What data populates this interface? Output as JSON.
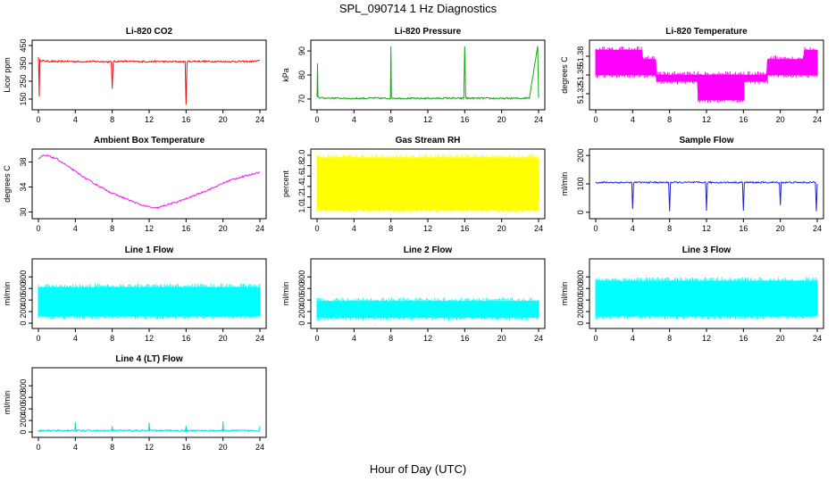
{
  "figure": {
    "title": "SPL_090714  1 Hz Diagnostics",
    "x_axis_label": "Hour of Day (UTC)"
  },
  "chart_data": [
    {
      "type": "line",
      "title": "Li-820 CO2",
      "ylabel": "Licor ppm",
      "color": "#ee1111",
      "xlim": [
        0,
        24
      ],
      "ylim": [
        110,
        460
      ],
      "xticks": [
        0,
        4,
        8,
        12,
        16,
        20,
        24
      ],
      "yticks": [
        150,
        250,
        350,
        450
      ],
      "ytick_labels": [
        "150",
        "250",
        "350",
        "450"
      ],
      "series": [
        {
          "x": [
            0,
            0.1,
            0.15,
            0.2,
            1,
            2,
            3,
            4,
            5,
            6,
            7,
            7.9,
            8,
            8.1,
            9,
            10,
            11,
            12,
            13,
            14,
            15,
            15.9,
            16,
            16.1,
            17,
            18,
            19,
            20,
            21,
            22,
            23,
            24
          ],
          "y": [
            390,
            160,
            370,
            365,
            362,
            360,
            362,
            360,
            360,
            361,
            360,
            358,
            210,
            360,
            362,
            361,
            360,
            360,
            361,
            359,
            360,
            358,
            120,
            360,
            362,
            361,
            361,
            360,
            360,
            361,
            360,
            365
          ]
        }
      ]
    },
    {
      "type": "line",
      "title": "Li-820 Pressure",
      "ylabel": "kPa",
      "color": "#11aa11",
      "xlim": [
        0,
        24
      ],
      "ylim": [
        67,
        93
      ],
      "xticks": [
        0,
        4,
        8,
        12,
        16,
        20,
        24
      ],
      "yticks": [
        70,
        80,
        90
      ],
      "ytick_labels": [
        "70",
        "80",
        "90"
      ],
      "series": [
        {
          "x": [
            0,
            0.05,
            0.1,
            0.3,
            1,
            2,
            3,
            4,
            5,
            6,
            7,
            7.95,
            8,
            8.05,
            9,
            10,
            11,
            12,
            13,
            14,
            15,
            15.9,
            16,
            16.1,
            17,
            18,
            19,
            20,
            21,
            22,
            23,
            23.9,
            24
          ],
          "y": [
            70.5,
            85,
            71,
            70.5,
            70.4,
            70.4,
            70.3,
            70.2,
            70.3,
            70.4,
            70.3,
            70.3,
            92,
            70.4,
            70.3,
            70.3,
            70.2,
            70.3,
            70.3,
            70.4,
            70.3,
            70.3,
            92,
            70.4,
            70.3,
            70.3,
            70.3,
            70.2,
            70.3,
            70.3,
            70.5,
            92,
            70.5
          ]
        }
      ]
    },
    {
      "type": "area",
      "title": "Li-820 Temperature",
      "ylabel": "degrees C",
      "color": "#ff00ff",
      "xlim": [
        0,
        24
      ],
      "ylim": [
        51.3,
        51.4
      ],
      "xticks": [
        0,
        4,
        8,
        12,
        16,
        20,
        24
      ],
      "yticks": [
        51.32,
        51.35,
        51.38
      ],
      "ytick_labels": [
        "51.32",
        "51.35",
        "51.38"
      ],
      "series": [
        {
          "x": [
            0,
            5,
            5.1,
            6.5,
            6.6,
            11,
            11.1,
            16,
            16.1,
            18.5,
            18.6,
            22.5,
            22.6,
            24
          ],
          "low": [
            51.35,
            51.35,
            51.35,
            51.35,
            51.34,
            51.34,
            51.31,
            51.31,
            51.34,
            51.34,
            51.35,
            51.35,
            51.35,
            51.35
          ],
          "high": [
            51.39,
            51.39,
            51.375,
            51.375,
            51.35,
            51.35,
            51.35,
            51.35,
            51.35,
            51.35,
            51.375,
            51.375,
            51.39,
            51.39
          ]
        }
      ]
    },
    {
      "type": "line",
      "title": "Ambient Box Temperature",
      "ylabel": "degrees C",
      "color": "#ee22ee",
      "xlim": [
        0,
        24
      ],
      "ylim": [
        29.5,
        39.5
      ],
      "xticks": [
        0,
        4,
        8,
        12,
        16,
        20,
        24
      ],
      "yticks": [
        30,
        34,
        38
      ],
      "ytick_labels": [
        "30",
        "34",
        "38"
      ],
      "series": [
        {
          "x": [
            0,
            0.5,
            1,
            2,
            3,
            4,
            5,
            6,
            7,
            8,
            9,
            10,
            11,
            12,
            12.5,
            13,
            14,
            15,
            16,
            17,
            18,
            19,
            20,
            21,
            22,
            23,
            24
          ],
          "y": [
            38.5,
            39,
            39,
            38.5,
            37.5,
            36.5,
            35.5,
            34.6,
            33.8,
            33,
            32.4,
            31.8,
            31.2,
            30.8,
            30.6,
            30.7,
            31.2,
            31.6,
            32.1,
            32.7,
            33.3,
            33.9,
            34.6,
            35.2,
            35.6,
            36,
            36.4
          ]
        }
      ]
    },
    {
      "type": "area",
      "title": "Gas Stream RH",
      "ylabel": "percent",
      "color": "#ffff00",
      "xlim": [
        0,
        24
      ],
      "ylim": [
        0.85,
        2.05
      ],
      "xticks": [
        0,
        4,
        8,
        12,
        16,
        20,
        24
      ],
      "yticks": [
        1.0,
        1.2,
        1.4,
        1.6,
        1.8,
        2.0
      ],
      "ytick_labels": [
        "1.0",
        "1.2",
        "1.4",
        "1.6",
        "1.8",
        "2.0"
      ],
      "series": [
        {
          "x": [
            0,
            24
          ],
          "low": [
            0.95,
            0.95
          ],
          "high": [
            1.95,
            1.95
          ]
        }
      ]
    },
    {
      "type": "line",
      "title": "Sample Flow",
      "ylabel": "ml/min",
      "color": "#2222dd",
      "xlim": [
        0,
        24
      ],
      "ylim": [
        -10,
        210
      ],
      "xticks": [
        0,
        4,
        8,
        12,
        16,
        20,
        24
      ],
      "yticks": [
        0,
        100,
        200
      ],
      "ytick_labels": [
        "0",
        "100",
        "200"
      ],
      "series": [
        {
          "x": [
            0,
            3.9,
            4,
            4.1,
            7.9,
            8,
            8.1,
            11.9,
            12,
            12.1,
            15.9,
            16,
            16.1,
            19.9,
            20,
            20.1,
            23.8,
            23.9,
            24
          ],
          "y": [
            105,
            105,
            10,
            105,
            105,
            5,
            105,
            105,
            5,
            105,
            105,
            5,
            105,
            105,
            25,
            105,
            105,
            5,
            100
          ]
        }
      ]
    },
    {
      "type": "area",
      "title": "Line 1 Flow",
      "ylabel": "ml/min",
      "color": "#00ffff",
      "xlim": [
        0,
        24
      ],
      "ylim": [
        -30,
        1050
      ],
      "xticks": [
        0,
        4,
        8,
        12,
        16,
        20,
        24
      ],
      "yticks": [
        0,
        200,
        400,
        600,
        800
      ],
      "ytick_labels": [
        "0",
        "200",
        "400",
        "600",
        "800"
      ],
      "series": [
        {
          "x": [
            0,
            24
          ],
          "low": [
            120,
            120
          ],
          "high": [
            620,
            620
          ]
        }
      ]
    },
    {
      "type": "area",
      "title": "Line 2 Flow",
      "ylabel": "ml/min",
      "color": "#00ffff",
      "xlim": [
        0,
        24
      ],
      "ylim": [
        -30,
        1050
      ],
      "xticks": [
        0,
        4,
        8,
        12,
        16,
        20,
        24
      ],
      "yticks": [
        0,
        200,
        400,
        600,
        800
      ],
      "ytick_labels": [
        "0",
        "200",
        "400",
        "600",
        "800"
      ],
      "series": [
        {
          "x": [
            0,
            24
          ],
          "low": [
            100,
            100
          ],
          "high": [
            380,
            380
          ]
        }
      ]
    },
    {
      "type": "area",
      "title": "Line 3 Flow",
      "ylabel": "ml/min",
      "color": "#00ffff",
      "xlim": [
        0,
        24
      ],
      "ylim": [
        -30,
        1050
      ],
      "xticks": [
        0,
        4,
        8,
        12,
        16,
        20,
        24
      ],
      "yticks": [
        0,
        200,
        400,
        600,
        800
      ],
      "ytick_labels": [
        "0",
        "200",
        "400",
        "600",
        "800"
      ],
      "series": [
        {
          "x": [
            0,
            24
          ],
          "low": [
            120,
            120
          ],
          "high": [
            730,
            730
          ]
        }
      ]
    },
    {
      "type": "line",
      "title": "Line 4 (LT) Flow",
      "ylabel": "ml/min",
      "color": "#00dddd",
      "xlim": [
        0,
        24
      ],
      "ylim": [
        -30,
        1050
      ],
      "xticks": [
        0,
        4,
        8,
        12,
        16,
        20,
        24
      ],
      "yticks": [
        0,
        200,
        400,
        600,
        800
      ],
      "ytick_labels": [
        "0",
        "200",
        "400",
        "600",
        "800"
      ],
      "series": [
        {
          "x": [
            0,
            3.95,
            4,
            4.05,
            7.95,
            8,
            8.05,
            11.95,
            12,
            12.05,
            15.95,
            16,
            16.05,
            19.95,
            20,
            20.05,
            23.95,
            24
          ],
          "y": [
            25,
            25,
            180,
            25,
            25,
            100,
            25,
            25,
            160,
            25,
            25,
            110,
            25,
            25,
            170,
            25,
            25,
            110
          ]
        }
      ]
    }
  ]
}
